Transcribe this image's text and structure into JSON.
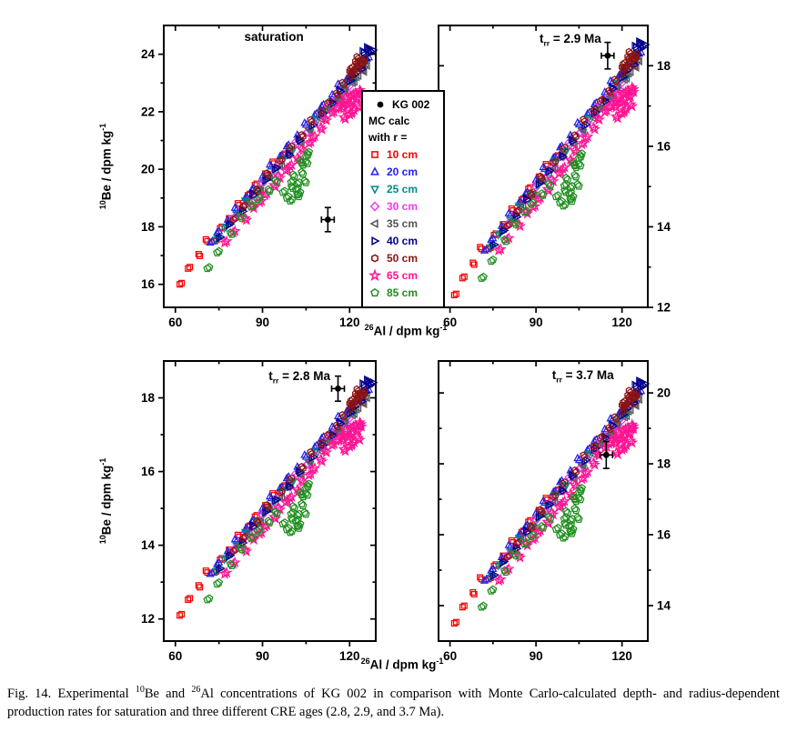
{
  "legend": {
    "kg_label": "KG 002",
    "mc_line": "MC calc",
    "r_line": "with r ="
  },
  "figure": {
    "x_axis_label": {
      "sup": "26",
      "text": "Al / dpm kg",
      "exp": "-1"
    },
    "y_axis_label": {
      "sup": "10",
      "text": "Be / dpm kg",
      "exp": "-1"
    },
    "caption": [
      {
        "text": "Fig. 14. Experimental "
      },
      {
        "sup": "10"
      },
      {
        "text": "Be and "
      },
      {
        "sup": "26"
      },
      {
        "text": "Al concentrations of KG 002 in comparison with Monte Carlo-calculated depth- and radius-dependent production rates for saturation and three different CRE ages (2.8, 2.9, and 3.7 Ma)."
      }
    ]
  },
  "chart_data": {
    "type": "scatter",
    "title": "",
    "xlabel": "26Al / dpm kg-1",
    "ylabel": "10Be / dpm kg-1",
    "x_ticks": [
      60,
      90,
      120
    ],
    "x_range": [
      56,
      129
    ],
    "grid": false,
    "legend_position": "overlay between top panels",
    "experimental_point_label": "KG 002",
    "series": [
      {
        "label": "10 cm",
        "radius_cm": 10,
        "marker": "square",
        "color": "#f50000",
        "points": [
          [
            61.5,
            16.0
          ],
          [
            65,
            16.6
          ],
          [
            68,
            17.05
          ],
          [
            71,
            17.5
          ],
          [
            73.5,
            17.5
          ],
          [
            76,
            18.0
          ],
          [
            78.5,
            18.3
          ],
          [
            82,
            18.75
          ],
          [
            85,
            19.1
          ],
          [
            88,
            19.5
          ],
          [
            91,
            19.85
          ],
          [
            94,
            20.2
          ],
          [
            97,
            20.5
          ],
          [
            121,
            23.25
          ],
          [
            124,
            23.5
          ]
        ]
      },
      {
        "label": "20 cm",
        "radius_cm": 20,
        "marker": "triangle-up",
        "color": "#2323e6",
        "points": [
          [
            72,
            17.45
          ],
          [
            75,
            17.85
          ],
          [
            78,
            18.25
          ],
          [
            81,
            18.6
          ],
          [
            84,
            19.0
          ],
          [
            87,
            19.35
          ],
          [
            90,
            19.75
          ],
          [
            93,
            20.1
          ],
          [
            96,
            20.45
          ],
          [
            99,
            20.85
          ],
          [
            102,
            21.2
          ],
          [
            105,
            21.55
          ],
          [
            108,
            21.9
          ],
          [
            111,
            22.25
          ],
          [
            114,
            22.6
          ],
          [
            116.5,
            22.9
          ],
          [
            119,
            23.15
          ],
          [
            121,
            23.35
          ],
          [
            123,
            23.55
          ],
          [
            124.5,
            23.7
          ],
          [
            126,
            23.85
          ]
        ]
      },
      {
        "label": "25 cm",
        "radius_cm": 25,
        "marker": "triangle-down",
        "color": "#008c8c",
        "points": [
          [
            74,
            17.55
          ],
          [
            77.5,
            18.0
          ],
          [
            81,
            18.45
          ],
          [
            84.5,
            18.85
          ],
          [
            88,
            19.25
          ],
          [
            91,
            19.6
          ],
          [
            94,
            19.95
          ],
          [
            97,
            20.3
          ],
          [
            100,
            20.65
          ],
          [
            103,
            21.0
          ],
          [
            106,
            21.35
          ],
          [
            109,
            21.7
          ],
          [
            112,
            22.05
          ],
          [
            114.5,
            22.35
          ],
          [
            117,
            22.6
          ],
          [
            119,
            22.85
          ],
          [
            121,
            23.05
          ]
        ]
      },
      {
        "label": "30 cm",
        "radius_cm": 30,
        "marker": "diamond",
        "color": "#ee3cee",
        "points": [
          [
            80,
            18.3
          ],
          [
            83.5,
            18.7
          ],
          [
            87,
            19.1
          ],
          [
            90,
            19.5
          ],
          [
            93,
            19.8
          ],
          [
            96,
            20.2
          ],
          [
            99,
            20.55
          ],
          [
            102,
            20.9
          ],
          [
            105,
            21.25
          ],
          [
            108,
            21.6
          ],
          [
            110.5,
            21.9
          ],
          [
            113,
            22.15
          ],
          [
            115,
            22.4
          ],
          [
            117,
            22.6
          ],
          [
            118.5,
            22.75
          ],
          [
            120,
            22.9
          ]
        ]
      },
      {
        "label": "35 cm",
        "radius_cm": 35,
        "marker": "triangle-left",
        "color": "#555555",
        "points": [
          [
            82,
            18.45
          ],
          [
            85.5,
            18.9
          ],
          [
            89,
            19.3
          ],
          [
            92.5,
            19.7
          ],
          [
            96,
            20.1
          ],
          [
            99.5,
            20.55
          ],
          [
            103,
            20.95
          ],
          [
            106.5,
            21.35
          ],
          [
            110,
            21.75
          ],
          [
            113,
            22.1
          ],
          [
            116,
            22.45
          ],
          [
            118.5,
            22.75
          ],
          [
            121,
            23.0
          ],
          [
            123,
            23.25
          ],
          [
            124.5,
            23.45
          ],
          [
            126,
            23.6
          ]
        ]
      },
      {
        "label": "40 cm",
        "radius_cm": 40,
        "marker": "triangle-right",
        "color": "#00008b",
        "points": [
          [
            75,
            17.6
          ],
          [
            79,
            18.1
          ],
          [
            83,
            18.6
          ],
          [
            87,
            19.1
          ],
          [
            91,
            19.6
          ],
          [
            95,
            20.05
          ],
          [
            99,
            20.55
          ],
          [
            103,
            21.0
          ],
          [
            107,
            21.5
          ],
          [
            111,
            21.95
          ],
          [
            114,
            22.35
          ],
          [
            117,
            22.7
          ],
          [
            120,
            23.05
          ],
          [
            122,
            23.3
          ],
          [
            124,
            23.55
          ],
          [
            125.5,
            23.8
          ],
          [
            126.5,
            24.0
          ],
          [
            127,
            24.2
          ],
          [
            126,
            24.25
          ],
          [
            125,
            24.05
          ],
          [
            127.5,
            24.1
          ]
        ]
      },
      {
        "label": "50 cm",
        "radius_cm": 50,
        "marker": "hexagon",
        "color": "#8b1313",
        "points": [
          [
            80,
            18.25
          ],
          [
            84,
            18.75
          ],
          [
            88,
            19.3
          ],
          [
            92,
            19.8
          ],
          [
            96,
            20.3
          ],
          [
            100,
            20.8
          ],
          [
            103.5,
            21.2
          ],
          [
            107,
            21.65
          ],
          [
            110,
            22.0
          ],
          [
            113,
            22.35
          ],
          [
            115.5,
            22.65
          ],
          [
            118,
            22.95
          ],
          [
            120,
            23.2
          ],
          [
            121.5,
            23.45
          ],
          [
            122.5,
            23.6
          ],
          [
            123.5,
            23.7
          ],
          [
            124.5,
            23.8
          ],
          [
            121,
            23.55
          ],
          [
            122,
            23.75
          ],
          [
            123,
            23.85
          ],
          [
            124,
            23.65
          ],
          [
            125,
            23.75
          ],
          [
            122.5,
            23.5
          ],
          [
            120.5,
            23.35
          ]
        ]
      },
      {
        "label": "65 cm",
        "radius_cm": 65,
        "marker": "star",
        "color": "#ff1493",
        "points": [
          [
            77,
            17.45
          ],
          [
            80.5,
            17.85
          ],
          [
            84,
            18.3
          ],
          [
            87,
            18.65
          ],
          [
            89,
            18.85
          ],
          [
            91.5,
            19.15
          ],
          [
            94,
            19.45
          ],
          [
            96,
            19.7
          ],
          [
            98,
            19.95
          ],
          [
            100,
            20.15
          ],
          [
            102,
            20.4
          ],
          [
            104,
            20.65
          ],
          [
            106,
            20.9
          ],
          [
            108,
            21.15
          ],
          [
            110,
            21.45
          ],
          [
            112,
            21.7
          ],
          [
            114,
            21.95
          ],
          [
            116,
            22.15
          ],
          [
            117.5,
            22.3
          ],
          [
            119,
            22.45
          ],
          [
            120.5,
            22.55
          ],
          [
            122,
            22.65
          ],
          [
            123.5,
            22.75
          ],
          [
            118,
            22.1
          ],
          [
            119.5,
            22.25
          ],
          [
            121,
            22.35
          ],
          [
            122.5,
            22.5
          ],
          [
            124,
            22.6
          ],
          [
            120,
            21.9
          ],
          [
            121.5,
            22.05
          ],
          [
            123,
            22.2
          ],
          [
            118.5,
            21.75
          ]
        ]
      },
      {
        "label": "85 cm",
        "radius_cm": 85,
        "marker": "pentagon",
        "color": "#1f8f1f",
        "points": [
          [
            71,
            16.55
          ],
          [
            75,
            17.15
          ],
          [
            79,
            17.8
          ],
          [
            83,
            18.3
          ],
          [
            86,
            18.7
          ],
          [
            89,
            19.0
          ],
          [
            92,
            19.3
          ],
          [
            95,
            19.55
          ],
          [
            97,
            19.2
          ],
          [
            99,
            19.05
          ],
          [
            100,
            19.4
          ],
          [
            101,
            19.75
          ],
          [
            102,
            19.5
          ],
          [
            103,
            19.2
          ],
          [
            103.5,
            19.9
          ],
          [
            104,
            20.15
          ],
          [
            105,
            20.45
          ],
          [
            106,
            20.6
          ],
          [
            104.5,
            19.6
          ],
          [
            102.5,
            19.05
          ],
          [
            101.5,
            19.3
          ],
          [
            100.5,
            19.6
          ],
          [
            103,
            20.3
          ],
          [
            105.5,
            20.2
          ],
          [
            99.5,
            18.9
          ]
        ]
      }
    ],
    "panels": [
      {
        "id": "saturation",
        "annotation": {
          "text": "saturation"
        },
        "y_ticks": [
          16,
          18,
          20,
          22,
          24
        ],
        "y_range": [
          15.2,
          25.0
        ],
        "y_map": {
          "a": 1,
          "b": 0
        },
        "labels_side": "left",
        "kg002": {
          "x": 112.5,
          "y": 18.25,
          "xerr": 2.2,
          "yerr": 0.42
        }
      },
      {
        "id": "t29",
        "annotation": {
          "base": "t",
          "sub": "rr",
          "rest": " = 2.9 Ma"
        },
        "age": "2.9 Ma",
        "y_ticks": [
          12,
          14,
          16,
          18
        ],
        "y_range": [
          12.0,
          19.0
        ],
        "y_map": {
          "a": 0.764,
          "b": 0.08
        },
        "labels_side": "right",
        "kg002": {
          "x": 115,
          "y": 18.25,
          "xerr": 2.2,
          "yerr": 0.33
        }
      },
      {
        "id": "t28",
        "annotation": {
          "base": "t",
          "sub": "rr",
          "rest": " = 2.8 Ma"
        },
        "age": "2.8 Ma",
        "y_ticks": [
          12,
          14,
          16,
          18
        ],
        "y_range": [
          11.4,
          19.0
        ],
        "y_map": {
          "a": 0.776,
          "b": -0.32
        },
        "labels_side": "left",
        "kg002": {
          "x": 116,
          "y": 18.25,
          "xerr": 2.2,
          "yerr": 0.34
        }
      },
      {
        "id": "t37",
        "annotation": {
          "base": "t",
          "sub": "rr",
          "rest": " = 3.7 Ma"
        },
        "age": "3.7 Ma",
        "y_ticks": [
          14,
          16,
          18,
          20
        ],
        "y_range": [
          13.0,
          20.9
        ],
        "y_map": {
          "a": 0.83,
          "b": 0.22
        },
        "labels_side": "right",
        "kg002": {
          "x": 114.5,
          "y": 18.25,
          "xerr": 2.2,
          "yerr": 0.38
        }
      }
    ]
  }
}
